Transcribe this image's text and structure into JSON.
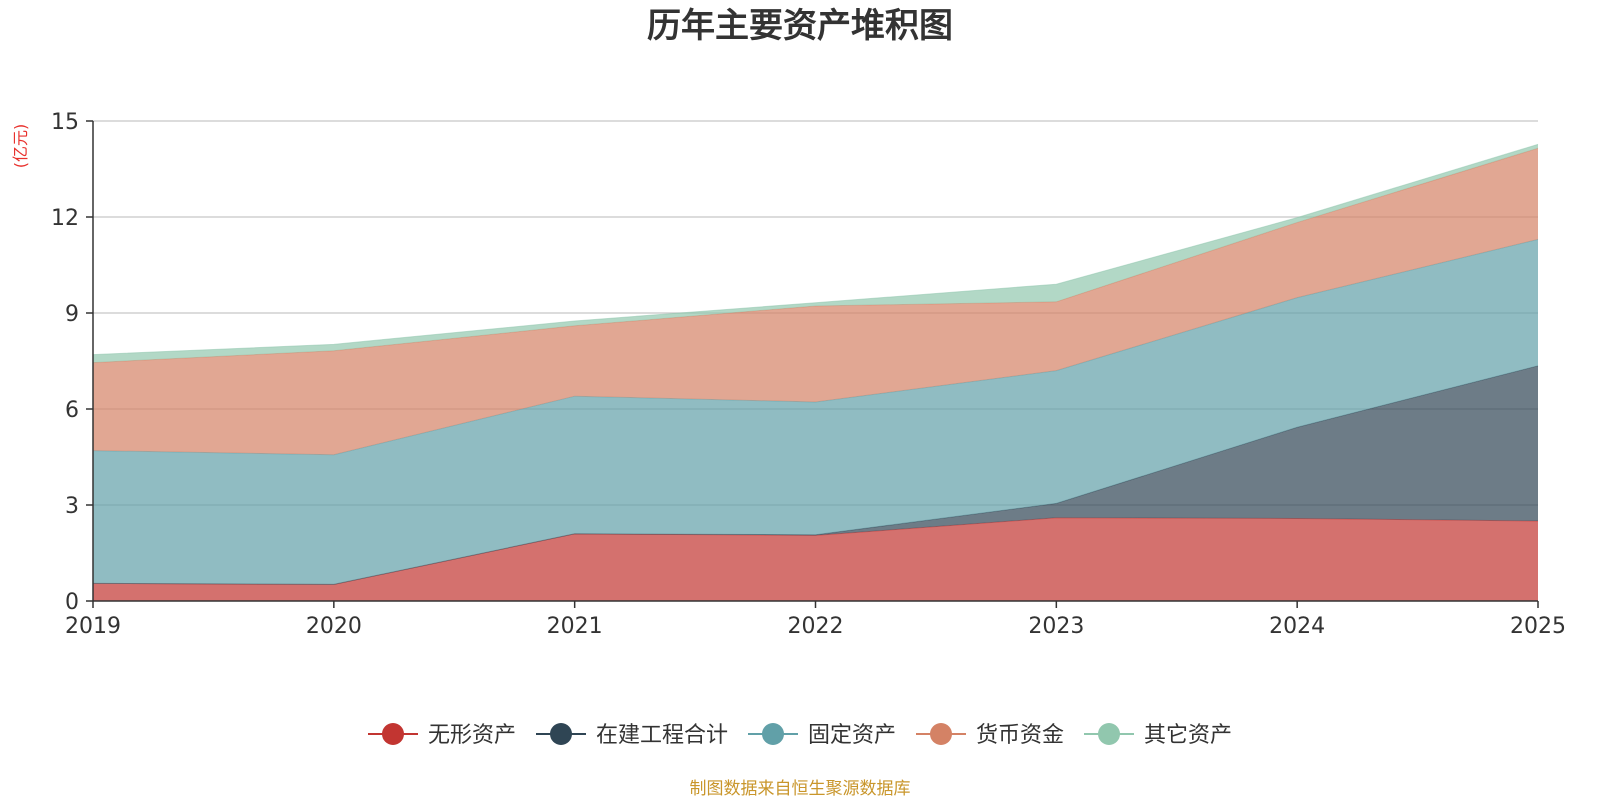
{
  "chart_data": {
    "type": "area",
    "stacked": true,
    "title": "历年主要资产堆积图",
    "unit": "(亿元)",
    "x": [
      "2019",
      "2020",
      "2021",
      "2022",
      "2023",
      "2024",
      "2025"
    ],
    "ylim": [
      0,
      15
    ],
    "yticks": [
      "0",
      "3",
      "6",
      "9",
      "12",
      "15"
    ],
    "grid": true,
    "legend_position": "bottom",
    "series": [
      {
        "name": "无形资产",
        "color": "#c23531",
        "values": [
          0.55,
          0.52,
          2.1,
          2.05,
          2.6,
          2.58,
          2.5
        ]
      },
      {
        "name": "在建工程合计",
        "color": "#2f4554",
        "values": [
          0.0,
          0.0,
          0.0,
          0.02,
          0.45,
          2.85,
          4.85
        ]
      },
      {
        "name": "固定资产",
        "color": "#61a0a8",
        "values": [
          4.15,
          4.05,
          4.3,
          4.15,
          4.15,
          4.05,
          3.95
        ]
      },
      {
        "name": "货币资金",
        "color": "#d48265",
        "values": [
          2.75,
          3.25,
          2.2,
          3.0,
          2.15,
          2.35,
          2.85
        ]
      },
      {
        "name": "其它资产",
        "color": "#91c7ae",
        "values": [
          0.25,
          0.2,
          0.15,
          0.1,
          0.55,
          0.15,
          0.12
        ]
      }
    ],
    "source": "制图数据来自恒生聚源数据库"
  }
}
